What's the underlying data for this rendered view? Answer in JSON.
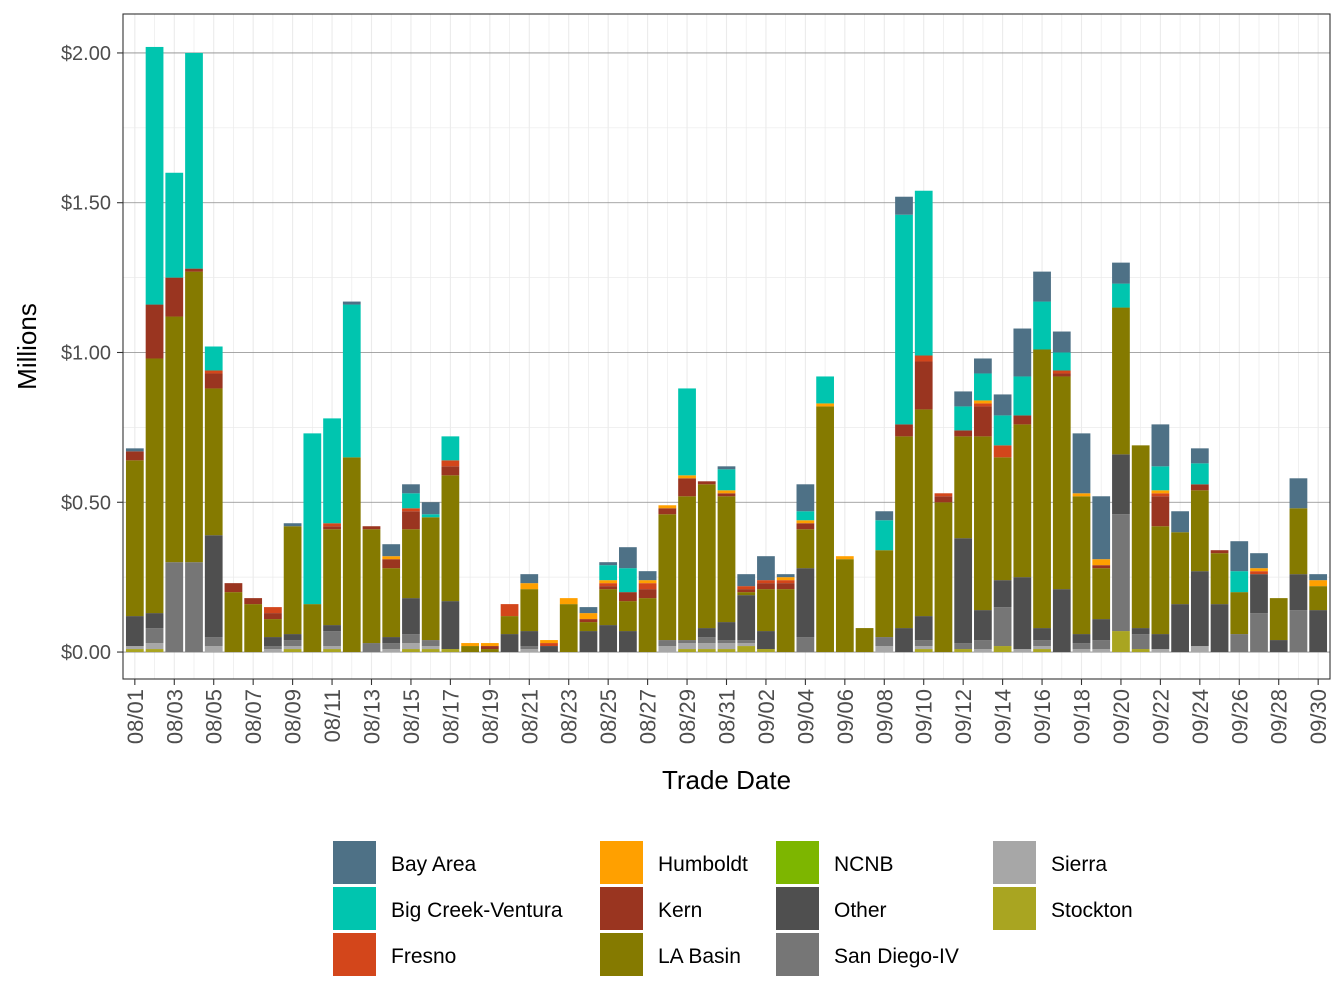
{
  "chart_data": {
    "type": "bar",
    "stacked": true,
    "title": "",
    "xlabel": "Trade Date",
    "ylabel": "Millions",
    "ylim": [
      -0.09,
      2.13
    ],
    "yticks": [
      0,
      0.5,
      1.0,
      1.5,
      2.0
    ],
    "ytick_labels": [
      "$0.00",
      "$0.50",
      "$1.00",
      "$1.50",
      "$2.00"
    ],
    "grid": true,
    "legend_position": "bottom",
    "categories": [
      "08/01",
      "08/02",
      "08/03",
      "08/04",
      "08/05",
      "08/06",
      "08/07",
      "08/08",
      "08/09",
      "08/10",
      "08/11",
      "08/12",
      "08/13",
      "08/14",
      "08/15",
      "08/16",
      "08/17",
      "08/18",
      "08/19",
      "08/20",
      "08/21",
      "08/22",
      "08/23",
      "08/24",
      "08/25",
      "08/26",
      "08/27",
      "08/28",
      "08/29",
      "08/30",
      "08/31",
      "09/01",
      "09/02",
      "09/03",
      "09/04",
      "09/05",
      "09/06",
      "09/07",
      "09/08",
      "09/09",
      "09/10",
      "09/11",
      "09/12",
      "09/13",
      "09/14",
      "09/15",
      "09/16",
      "09/17",
      "09/18",
      "09/19",
      "09/20",
      "09/21",
      "09/22",
      "09/23",
      "09/24",
      "09/25",
      "09/26",
      "09/27",
      "09/28",
      "09/29",
      "09/30"
    ],
    "tick_labels": [
      "08/01",
      "08/03",
      "08/05",
      "08/07",
      "08/09",
      "08/11",
      "08/13",
      "08/15",
      "08/17",
      "08/19",
      "08/21",
      "08/23",
      "08/25",
      "08/27",
      "08/29",
      "08/31",
      "09/02",
      "09/04",
      "09/06",
      "09/08",
      "09/10",
      "09/12",
      "09/14",
      "09/16",
      "09/18",
      "09/20",
      "09/22",
      "09/24",
      "09/26",
      "09/28",
      "09/30"
    ],
    "series": [
      {
        "name": "Stockton",
        "color": "#A9A521",
        "values": [
          0.01,
          0.01,
          0,
          0,
          0,
          0,
          0,
          0,
          0.01,
          0,
          0.01,
          0,
          0,
          0,
          0.01,
          0.01,
          0.01,
          0,
          0,
          0,
          0,
          0,
          0,
          0,
          0,
          0,
          0,
          0,
          0.01,
          0.01,
          0.01,
          0.02,
          0.01,
          0,
          0,
          0,
          0,
          0,
          0,
          0,
          0.01,
          0,
          0.01,
          0,
          0.02,
          0,
          0.01,
          0,
          0,
          0,
          0.07,
          0.01,
          0,
          0,
          0,
          0,
          0,
          0,
          0,
          0,
          0
        ]
      },
      {
        "name": "Sierra",
        "color": "#A7A7A7",
        "values": [
          0.01,
          0.02,
          0,
          0,
          0.02,
          0,
          0,
          0.01,
          0.01,
          0,
          0.01,
          0,
          0,
          0.01,
          0.02,
          0.01,
          0,
          0,
          0,
          0,
          0.01,
          0,
          0,
          0,
          0,
          0,
          0,
          0.02,
          0.02,
          0.02,
          0.02,
          0.01,
          0,
          0,
          0,
          0,
          0,
          0,
          0.02,
          0,
          0.01,
          0,
          0,
          0.01,
          0,
          0.01,
          0.01,
          0,
          0.01,
          0.01,
          0,
          0,
          0.01,
          0,
          0.02,
          0,
          0,
          0,
          0,
          0,
          0
        ]
      },
      {
        "name": "San Diego-IV",
        "color": "#767676",
        "values": [
          0,
          0.05,
          0.3,
          0.3,
          0.03,
          0,
          0,
          0.01,
          0.02,
          0,
          0.05,
          0,
          0.03,
          0.02,
          0.03,
          0.02,
          0,
          0,
          0,
          0,
          0.01,
          0,
          0,
          0,
          0,
          0,
          0,
          0.02,
          0.01,
          0.02,
          0.01,
          0.01,
          0,
          0,
          0.05,
          0,
          0,
          0,
          0.03,
          0,
          0.02,
          0,
          0.02,
          0.03,
          0.13,
          0,
          0.02,
          0,
          0.02,
          0.03,
          0.39,
          0.05,
          0,
          0,
          0,
          0,
          0.06,
          0.13,
          0,
          0.14,
          0
        ]
      },
      {
        "name": "Other",
        "color": "#4F4F4F",
        "values": [
          0.1,
          0.05,
          0,
          0,
          0.34,
          0,
          0,
          0.03,
          0.02,
          0,
          0.02,
          0,
          0,
          0.02,
          0.12,
          0,
          0.16,
          0,
          0,
          0.06,
          0.05,
          0.02,
          0,
          0.07,
          0.09,
          0.07,
          0,
          0,
          0,
          0.03,
          0.06,
          0.15,
          0.06,
          0,
          0.23,
          0,
          0,
          0,
          0,
          0.08,
          0.08,
          0,
          0.35,
          0.1,
          0.09,
          0.24,
          0.04,
          0.21,
          0.03,
          0.07,
          0.2,
          0.02,
          0.05,
          0.16,
          0.25,
          0.16,
          0,
          0.13,
          0.04,
          0.12,
          0.14
        ]
      },
      {
        "name": "NCNB",
        "color": "#7DB600",
        "values": [
          0,
          0,
          0,
          0,
          0,
          0,
          0,
          0,
          0,
          0,
          0,
          0,
          0,
          0,
          0,
          0,
          0,
          0,
          0,
          0,
          0,
          0,
          0,
          0,
          0,
          0,
          0,
          0,
          0,
          0,
          0,
          0,
          0,
          0,
          0,
          0,
          0,
          0,
          0,
          0,
          0,
          0,
          0,
          0,
          0,
          0,
          0,
          0,
          0,
          0,
          0,
          0,
          0,
          0,
          0,
          0,
          0,
          0,
          0,
          0,
          0
        ]
      },
      {
        "name": "LA Basin",
        "color": "#857A00",
        "values": [
          0.52,
          0.85,
          0.82,
          0.97,
          0.49,
          0.2,
          0.16,
          0.06,
          0.36,
          0.16,
          0.32,
          0.65,
          0.38,
          0.23,
          0.23,
          0.41,
          0.42,
          0.02,
          0.01,
          0.06,
          0.14,
          0,
          0.16,
          0.03,
          0.12,
          0.1,
          0.18,
          0.42,
          0.48,
          0.48,
          0.42,
          0.01,
          0.14,
          0.21,
          0.13,
          0.82,
          0.31,
          0.08,
          0.29,
          0.64,
          0.69,
          0.5,
          0.34,
          0.58,
          0.41,
          0.51,
          0.93,
          0.71,
          0.46,
          0.17,
          0.49,
          0.61,
          0.36,
          0.24,
          0.27,
          0.17,
          0.14,
          0,
          0.14,
          0.22,
          0.08
        ]
      },
      {
        "name": "Kern",
        "color": "#9A3520",
        "values": [
          0.03,
          0.18,
          0.13,
          0.01,
          0.05,
          0.03,
          0.02,
          0.02,
          0,
          0,
          0.01,
          0,
          0.01,
          0.03,
          0.06,
          0,
          0.03,
          0,
          0.01,
          0,
          0,
          0,
          0,
          0.01,
          0.01,
          0.03,
          0.03,
          0.02,
          0.06,
          0.01,
          0.01,
          0.01,
          0.02,
          0.02,
          0.02,
          0,
          0,
          0,
          0,
          0.04,
          0.16,
          0.02,
          0.02,
          0.1,
          0,
          0.03,
          0,
          0.01,
          0,
          0.01,
          0,
          0,
          0.1,
          0,
          0.02,
          0.01,
          0,
          0,
          0,
          0,
          0
        ]
      },
      {
        "name": "Fresno",
        "color": "#D3461B",
        "values": [
          0,
          0,
          0,
          0,
          0.01,
          0,
          0,
          0.02,
          0,
          0,
          0.01,
          0,
          0,
          0,
          0.01,
          0,
          0.02,
          0,
          0,
          0.04,
          0,
          0.01,
          0,
          0,
          0.01,
          0,
          0.02,
          0,
          0,
          0,
          0,
          0.01,
          0.01,
          0.01,
          0,
          0,
          0,
          0,
          0,
          0,
          0.02,
          0.01,
          0,
          0.01,
          0.04,
          0,
          0,
          0.01,
          0,
          0,
          0,
          0,
          0.01,
          0,
          0,
          0,
          0,
          0.01,
          0,
          0,
          0
        ]
      },
      {
        "name": "Humboldt",
        "color": "#FFA000",
        "values": [
          0,
          0,
          0,
          0,
          0,
          0,
          0,
          0,
          0,
          0,
          0,
          0,
          0,
          0.01,
          0,
          0,
          0,
          0.01,
          0.01,
          0,
          0.02,
          0.01,
          0.02,
          0.02,
          0.01,
          0,
          0.01,
          0.01,
          0.01,
          0,
          0.01,
          0,
          0,
          0.01,
          0.01,
          0.01,
          0.01,
          0,
          0,
          0,
          0,
          0,
          0,
          0.01,
          0,
          0,
          0,
          0,
          0.01,
          0.02,
          0,
          0,
          0.01,
          0,
          0,
          0,
          0,
          0.01,
          0,
          0,
          0.02
        ]
      },
      {
        "name": "Big Creek-Ventura",
        "color": "#00C5AF",
        "values": [
          0,
          0.86,
          0.35,
          0.72,
          0.08,
          0,
          0,
          0,
          0,
          0.57,
          0.35,
          0.51,
          0,
          0,
          0.05,
          0.01,
          0.08,
          0,
          0,
          0,
          0,
          0,
          0,
          0,
          0.05,
          0.08,
          0,
          0,
          0.29,
          0,
          0.07,
          0,
          0,
          0,
          0.03,
          0.09,
          0,
          0,
          0.1,
          0.7,
          0.55,
          0,
          0.08,
          0.09,
          0.1,
          0.13,
          0.16,
          0.06,
          0,
          0,
          0.08,
          0,
          0.08,
          0,
          0.07,
          0,
          0.07,
          0,
          0,
          0,
          0
        ]
      },
      {
        "name": "Bay Area",
        "color": "#4E7186",
        "values": [
          0.01,
          0,
          0,
          0,
          0,
          0,
          0,
          0,
          0.01,
          0,
          0,
          0.01,
          0,
          0.04,
          0.03,
          0.04,
          0,
          0,
          0,
          0,
          0.03,
          0,
          0,
          0.02,
          0.01,
          0.07,
          0.03,
          0,
          0,
          0,
          0.01,
          0.04,
          0.08,
          0.01,
          0.09,
          0,
          0,
          0,
          0.03,
          0.06,
          0,
          0,
          0.05,
          0.05,
          0.07,
          0.16,
          0.1,
          0.07,
          0.2,
          0.21,
          0.07,
          0,
          0.14,
          0.07,
          0.05,
          0,
          0.1,
          0.05,
          0,
          0.1,
          0.02
        ]
      }
    ],
    "legend": [
      "Bay Area",
      "Big Creek-Ventura",
      "Fresno",
      "Humboldt",
      "Kern",
      "LA Basin",
      "NCNB",
      "Other",
      "San Diego-IV",
      "Sierra",
      "Stockton"
    ]
  }
}
